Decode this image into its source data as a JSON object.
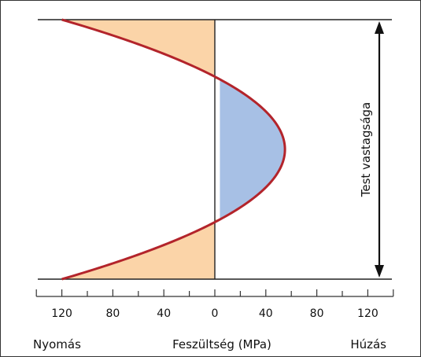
{
  "chart_data": {
    "type": "area",
    "x_axis": {
      "label": "Feszültség (MPa)",
      "left_label": "Nyomás",
      "right_label": "Húzás",
      "range": [
        -140,
        140
      ],
      "tick_values": [
        -120,
        -80,
        -40,
        0,
        40,
        80,
        120
      ],
      "tick_labels": [
        "120",
        "80",
        "40",
        "0",
        "40",
        "80",
        "120"
      ],
      "minor_step": 20
    },
    "thickness_label": "Test vastagsága",
    "series": [
      {
        "curve": "parabola",
        "surface_stress": -120,
        "center_stress": 55,
        "zero_crossings_fraction_of_thickness": [
          0.23,
          0.77
        ],
        "line_color": "#b3242b"
      }
    ],
    "fills": {
      "compression": "#fbd4a8",
      "tension": "#a7c0e5"
    },
    "colors": {
      "frame_lines": "#222222",
      "axis": "#333333"
    }
  }
}
